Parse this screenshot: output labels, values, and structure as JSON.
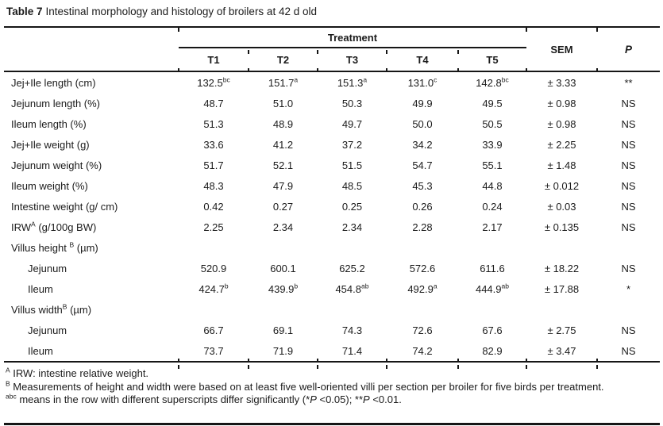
{
  "title": {
    "label": "Table 7",
    "text": "Intestinal morphology and histology of broilers at 42 d old"
  },
  "table": {
    "treatment_header": "Treatment",
    "columns": [
      "T1",
      "T2",
      "T3",
      "T4",
      "T5"
    ],
    "sem_header": "SEM",
    "p_header": "P",
    "rows": [
      {
        "label": "Jej+Ile length (cm)",
        "indent": false,
        "section": false,
        "values": [
          "132.5^{bc}",
          "151.7^{a}",
          "151.3^{a}",
          "131.0^{c}",
          "142.8^{bc}"
        ],
        "sem": "± 3.33",
        "p": "**"
      },
      {
        "label": "Jejunum length (%)",
        "indent": false,
        "section": false,
        "values": [
          "48.7",
          "51.0",
          "50.3",
          "49.9",
          "49.5"
        ],
        "sem": "± 0.98",
        "p": "NS"
      },
      {
        "label": "Ileum length (%)",
        "indent": false,
        "section": false,
        "values": [
          "51.3",
          "48.9",
          "49.7",
          "50.0",
          "50.5"
        ],
        "sem": "± 0.98",
        "p": "NS"
      },
      {
        "label": "Jej+Ile weight (g)",
        "indent": false,
        "section": false,
        "values": [
          "33.6",
          "41.2",
          "37.2",
          "34.2",
          "33.9"
        ],
        "sem": "± 2.25",
        "p": "NS"
      },
      {
        "label": "Jejunum weight (%)",
        "indent": false,
        "section": false,
        "values": [
          "51.7",
          "52.1",
          "51.5",
          "54.7",
          "55.1"
        ],
        "sem": "± 1.48",
        "p": "NS"
      },
      {
        "label": "Ileum weight (%)",
        "indent": false,
        "section": false,
        "values": [
          "48.3",
          "47.9",
          "48.5",
          "45.3",
          "44.8"
        ],
        "sem": "± 0.012",
        "p": "NS"
      },
      {
        "label": "Intestine weight (g/ cm)",
        "indent": false,
        "section": false,
        "values": [
          "0.42",
          "0.27",
          "0.25",
          "0.26",
          "0.24"
        ],
        "sem": "± 0.03",
        "p": "NS"
      },
      {
        "label": "IRW^{A} (g/100g BW)",
        "indent": false,
        "section": false,
        "values": [
          "2.25",
          "2.34",
          "2.34",
          "2.28",
          "2.17"
        ],
        "sem": "± 0.135",
        "p": "NS"
      },
      {
        "label": "Villus height ^{B} (µm)",
        "indent": false,
        "section": true,
        "values": [
          "",
          "",
          "",
          "",
          ""
        ],
        "sem": "",
        "p": ""
      },
      {
        "label": "Jejunum",
        "indent": true,
        "section": false,
        "values": [
          "520.9",
          "600.1",
          "625.2",
          "572.6",
          "611.6"
        ],
        "sem": "± 18.22",
        "p": "NS"
      },
      {
        "label": "Ileum",
        "indent": true,
        "section": false,
        "values": [
          "424.7^{b}",
          "439.9^{b}",
          "454.8^{ab}",
          "492.9^{a}",
          "444.9^{ab}"
        ],
        "sem": "± 17.88",
        "p": "*"
      },
      {
        "label": "Villus width^{B} (µm)",
        "indent": false,
        "section": true,
        "values": [
          "",
          "",
          "",
          "",
          ""
        ],
        "sem": "",
        "p": ""
      },
      {
        "label": "Jejunum",
        "indent": true,
        "section": false,
        "values": [
          "66.7",
          "69.1",
          "74.3",
          "72.6",
          "67.6"
        ],
        "sem": "± 2.75",
        "p": "NS"
      },
      {
        "label": "Ileum",
        "indent": true,
        "section": false,
        "values": [
          "73.7",
          "71.9",
          "71.4",
          "74.2",
          "82.9"
        ],
        "sem": "± 3.47",
        "p": "NS"
      }
    ]
  },
  "footnotes": [
    {
      "sup": "A",
      "text": "IRW: intestine relative weight."
    },
    {
      "sup": "B",
      "text": "Measurements of height and width were based on at least five well-oriented villi per section per broiler for five birds per treatment."
    },
    {
      "sup": "abc",
      "text": "means in the row with different superscripts differ significantly (*{i:P} <0.05); **{i:P} <0.01."
    }
  ]
}
